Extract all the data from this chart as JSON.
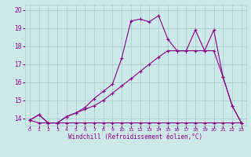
{
  "xlabel": "Windchill (Refroidissement éolien,°C)",
  "bg_color": "#cce8e8",
  "grid_color": "#aacccc",
  "line_color": "#880088",
  "xlim": [
    -0.5,
    23.5
  ],
  "ylim": [
    13.6,
    20.3
  ],
  "yticks": [
    14,
    15,
    16,
    17,
    18,
    19,
    20
  ],
  "xticks": [
    0,
    1,
    2,
    3,
    4,
    5,
    6,
    7,
    8,
    9,
    10,
    11,
    12,
    13,
    14,
    15,
    16,
    17,
    18,
    19,
    20,
    21,
    22,
    23
  ],
  "line_flat": {
    "x": [
      0,
      1,
      2,
      3,
      4,
      5,
      6,
      7,
      8,
      9,
      10,
      11,
      12,
      13,
      14,
      15,
      16,
      17,
      18,
      19,
      20,
      21,
      22,
      23
    ],
    "y": [
      13.9,
      13.75,
      13.75,
      13.75,
      13.75,
      13.75,
      13.75,
      13.75,
      13.75,
      13.75,
      13.75,
      13.75,
      13.75,
      13.75,
      13.75,
      13.75,
      13.75,
      13.75,
      13.75,
      13.75,
      13.75,
      13.75,
      13.75,
      13.75
    ]
  },
  "line_mid": {
    "x": [
      0,
      1,
      2,
      3,
      4,
      5,
      6,
      7,
      8,
      9,
      10,
      11,
      12,
      13,
      14,
      15,
      16,
      17,
      18,
      19,
      20,
      21,
      22,
      23
    ],
    "y": [
      13.9,
      14.2,
      13.75,
      13.75,
      14.1,
      14.3,
      14.5,
      14.7,
      15.0,
      15.4,
      15.8,
      16.2,
      16.6,
      17.0,
      17.4,
      17.75,
      17.75,
      17.75,
      17.75,
      17.75,
      17.75,
      16.3,
      14.7,
      13.75
    ]
  },
  "line_high": {
    "x": [
      0,
      1,
      2,
      3,
      4,
      5,
      6,
      7,
      8,
      9,
      10,
      11,
      12,
      13,
      14,
      15,
      16,
      17,
      18,
      19,
      20,
      21,
      22,
      23
    ],
    "y": [
      13.9,
      14.2,
      13.75,
      13.75,
      14.1,
      14.3,
      14.6,
      15.1,
      15.5,
      15.9,
      17.35,
      19.4,
      19.5,
      19.35,
      19.7,
      18.4,
      17.75,
      17.75,
      18.9,
      17.75,
      18.9,
      16.3,
      14.7,
      13.75
    ]
  }
}
